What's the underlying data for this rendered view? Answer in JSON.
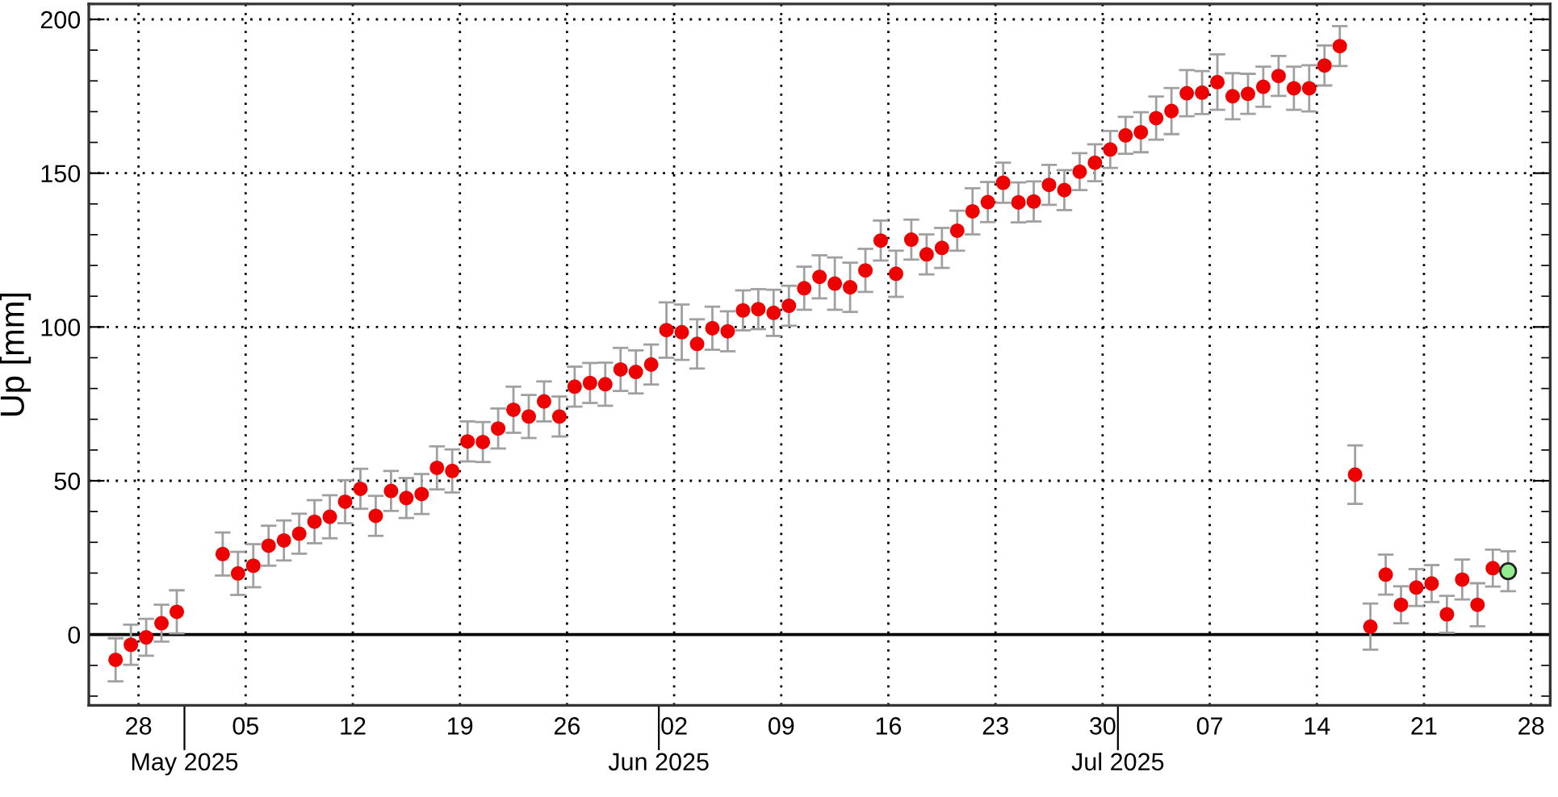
{
  "chart_data": {
    "type": "scatter",
    "ylabel": "Up [mm]",
    "marker": "circle",
    "grid": true,
    "legend": false,
    "xlim": [
      "2025-04-24T18:00",
      "2025-07-29T06:00"
    ],
    "ylim": [
      -23,
      205
    ],
    "x2lim": [
      "2025-04-24T18:00",
      "2025-07-29T06:00"
    ],
    "x2ticks": [
      {
        "value": "2025-05-01",
        "label": "May 2025"
      },
      {
        "value": "2025-06-01",
        "label": "Jun 2025"
      },
      {
        "value": "2025-07-01",
        "label": "Jul 2025"
      }
    ],
    "xticks": [
      {
        "value": "2025-04-28",
        "label": "28"
      },
      {
        "value": "2025-05-05",
        "label": "05"
      },
      {
        "value": "2025-05-12",
        "label": "12"
      },
      {
        "value": "2025-05-19",
        "label": "19"
      },
      {
        "value": "2025-05-26",
        "label": "26"
      },
      {
        "value": "2025-06-02",
        "label": "02"
      },
      {
        "value": "2025-06-09",
        "label": "09"
      },
      {
        "value": "2025-06-16",
        "label": "16"
      },
      {
        "value": "2025-06-23",
        "label": "23"
      },
      {
        "value": "2025-06-30",
        "label": "30"
      },
      {
        "value": "2025-07-07",
        "label": "07"
      },
      {
        "value": "2025-07-14",
        "label": "14"
      },
      {
        "value": "2025-07-21",
        "label": "21"
      },
      {
        "value": "2025-07-28",
        "label": "28"
      }
    ],
    "yticks": [
      {
        "value": -20,
        "label": null
      },
      {
        "value": -10,
        "label": null
      },
      0,
      {
        "value": 10,
        "label": null
      },
      {
        "value": 20,
        "label": null
      },
      {
        "value": 30,
        "label": null
      },
      {
        "value": 40,
        "label": null
      },
      50,
      {
        "value": 60,
        "label": null
      },
      {
        "value": 70,
        "label": null
      },
      {
        "value": 80,
        "label": null
      },
      {
        "value": 90,
        "label": null
      },
      100,
      {
        "value": 110,
        "label": null
      },
      {
        "value": 120,
        "label": null
      },
      {
        "value": 130,
        "label": null
      },
      {
        "value": 140,
        "label": null
      },
      150,
      {
        "value": 160,
        "label": null
      },
      {
        "value": 170,
        "label": null
      },
      {
        "value": 180,
        "label": null
      },
      {
        "value": 190,
        "label": null
      },
      200
    ],
    "ref_lines": [
      {
        "axis": "y",
        "value": 0,
        "color": "#000000",
        "line_style": "solid"
      }
    ],
    "series": [
      {
        "color": "#ee0000",
        "x": [
          "2025-04-26T12:00",
          "2025-04-27T12:00",
          "2025-04-28T12:00",
          "2025-04-29T12:00",
          "2025-04-30T12:00",
          "2025-05-03T12:00",
          "2025-05-04T12:00",
          "2025-05-05T12:00",
          "2025-05-06T12:00",
          "2025-05-07T12:00",
          "2025-05-08T12:00",
          "2025-05-09T12:00",
          "2025-05-10T12:00",
          "2025-05-11T12:00",
          "2025-05-12T12:00",
          "2025-05-13T12:00",
          "2025-05-14T12:00",
          "2025-05-15T12:00",
          "2025-05-16T12:00",
          "2025-05-17T12:00",
          "2025-05-18T12:00",
          "2025-05-19T12:00",
          "2025-05-20T12:00",
          "2025-05-21T12:00",
          "2025-05-22T12:00",
          "2025-05-23T12:00",
          "2025-05-24T12:00",
          "2025-05-25T12:00",
          "2025-05-26T12:00",
          "2025-05-27T12:00",
          "2025-05-28T12:00",
          "2025-05-29T12:00",
          "2025-05-30T12:00",
          "2025-05-31T12:00",
          "2025-06-01T12:00",
          "2025-06-02T12:00",
          "2025-06-03T12:00",
          "2025-06-04T12:00",
          "2025-06-05T12:00",
          "2025-06-06T12:00",
          "2025-06-07T12:00",
          "2025-06-08T12:00",
          "2025-06-09T12:00",
          "2025-06-10T12:00",
          "2025-06-11T12:00",
          "2025-06-12T12:00",
          "2025-06-13T12:00",
          "2025-06-14T12:00",
          "2025-06-15T12:00",
          "2025-06-16T12:00",
          "2025-06-17T12:00",
          "2025-06-18T12:00",
          "2025-06-19T12:00",
          "2025-06-20T12:00",
          "2025-06-21T12:00",
          "2025-06-22T12:00",
          "2025-06-23T12:00",
          "2025-06-24T12:00",
          "2025-06-25T12:00",
          "2025-06-26T12:00",
          "2025-06-27T12:00",
          "2025-06-28T12:00",
          "2025-06-29T12:00",
          "2025-06-30T12:00",
          "2025-07-01T12:00",
          "2025-07-02T12:00",
          "2025-07-03T12:00",
          "2025-07-04T12:00",
          "2025-07-05T12:00",
          "2025-07-06T12:00",
          "2025-07-07T12:00",
          "2025-07-08T12:00",
          "2025-07-09T12:00",
          "2025-07-10T12:00",
          "2025-07-11T12:00",
          "2025-07-12T12:00",
          "2025-07-13T12:00",
          "2025-07-14T12:00",
          "2025-07-15T12:00",
          "2025-07-16T12:00",
          "2025-07-17T12:00",
          "2025-07-18T12:00",
          "2025-07-19T12:00",
          "2025-07-20T12:00",
          "2025-07-21T12:00",
          "2025-07-22T12:00",
          "2025-07-23T12:00",
          "2025-07-24T12:00",
          "2025-07-25T12:00"
        ],
        "values": [
          -8.2,
          -3.3,
          -0.9,
          3.7,
          7.4,
          26.2,
          19.9,
          22.4,
          28.9,
          30.6,
          32.8,
          36.7,
          38.3,
          43.2,
          47.4,
          38.6,
          46.7,
          44.4,
          45.7,
          54.2,
          53.2,
          62.8,
          62.6,
          67.0,
          73.1,
          70.9,
          75.8,
          70.9,
          80.6,
          81.8,
          81.4,
          86.2,
          85.4,
          87.8,
          99.0,
          98.3,
          94.5,
          99.6,
          98.6,
          105.4,
          105.8,
          104.6,
          106.9,
          112.6,
          116.3,
          114.1,
          112.9,
          118.4,
          128.1,
          117.3,
          128.4,
          123.6,
          125.7,
          131.3,
          137.6,
          140.6,
          146.9,
          140.5,
          140.8,
          146.2,
          144.5,
          150.5,
          153.4,
          157.7,
          162.3,
          163.3,
          167.9,
          170.2,
          176.0,
          176.2,
          179.6,
          175.0,
          175.8,
          178.1,
          181.6,
          177.6,
          177.6,
          185.0,
          191.3,
          52.0,
          2.6,
          19.5,
          9.7,
          15.3,
          16.6,
          6.6,
          17.9,
          9.7,
          21.6
        ],
        "errors": [
          7,
          6.5,
          6,
          6,
          7,
          7,
          7,
          7,
          6.5,
          6.5,
          6.5,
          7,
          7,
          7,
          6.5,
          6.5,
          6.5,
          6.5,
          6.5,
          7,
          7,
          6.5,
          6.5,
          6.5,
          7.5,
          7,
          6.5,
          6.5,
          6.5,
          6.5,
          7,
          7,
          7,
          6.5,
          9,
          9,
          8,
          7,
          6.5,
          6.5,
          6.5,
          7.5,
          6.5,
          7,
          7,
          8.5,
          8,
          7,
          6.5,
          7.5,
          6.5,
          6.5,
          6.5,
          6.5,
          7.5,
          6.5,
          6.5,
          6.5,
          6.5,
          6.5,
          6.5,
          6,
          6,
          6,
          6,
          6.5,
          7,
          7.5,
          7.5,
          7,
          9,
          7.5,
          6.5,
          6.5,
          6.5,
          7,
          7.5,
          6.5,
          6.5,
          9.5,
          7.5,
          6.5,
          6,
          6,
          6,
          6,
          6.5,
          7,
          6
        ]
      },
      {
        "color": "#90ee90",
        "x": [
          "2025-07-26T12:00"
        ],
        "values": [
          20.6
        ],
        "errors": [
          6.5
        ]
      }
    ]
  }
}
